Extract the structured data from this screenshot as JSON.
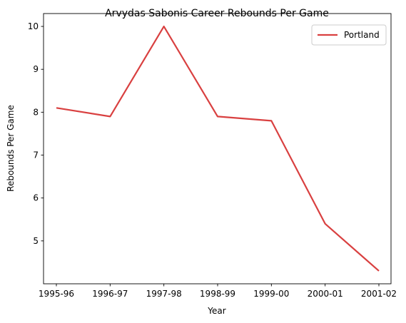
{
  "chart_data": {
    "type": "line",
    "title": "Arvydas Sabonis Career Rebounds Per Game",
    "xlabel": "Year",
    "ylabel": "Rebounds Per Game",
    "categories": [
      "1995-96",
      "1996-97",
      "1997-98",
      "1998-99",
      "1999-00",
      "2000-01",
      "2001-02"
    ],
    "series": [
      {
        "name": "Portland",
        "values": [
          8.1,
          7.9,
          10.0,
          7.9,
          7.8,
          5.4,
          4.3
        ],
        "color": "#d94040"
      }
    ],
    "ylim": [
      4.0,
      10.3
    ],
    "yticks": [
      5,
      6,
      7,
      8,
      9,
      10
    ],
    "grid": false,
    "legend_position": "top-right"
  }
}
